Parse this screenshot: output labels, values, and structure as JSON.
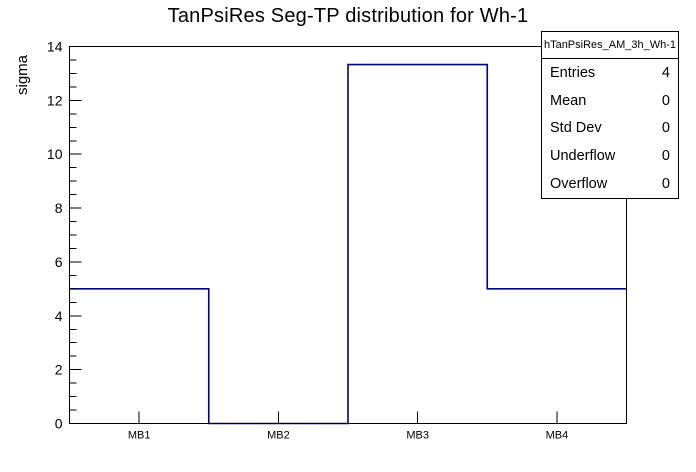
{
  "chart_data": {
    "type": "bar",
    "subtype": "root-step-histogram-outline",
    "title": "TanPsiRes Seg-TP distribution for Wh-1",
    "xlabel": "",
    "ylabel": "sigma",
    "categories": [
      "MB1",
      "MB2",
      "MB3",
      "MB4"
    ],
    "values": [
      5,
      0,
      13.33,
      5
    ],
    "ylim": [
      0,
      14
    ],
    "y_major_step": 2,
    "y_minor_step": 0.5,
    "grid": "off",
    "legend": "none",
    "line_color": "#000099",
    "frame_color": "#000000",
    "background_color": "#ffffff",
    "stats_box": {
      "title": "hTanPsiRes_AM_3h_Wh-1",
      "rows": [
        {
          "label": "Entries",
          "value": "4"
        },
        {
          "label": "Mean",
          "value": "0"
        },
        {
          "label": "Std Dev",
          "value": "0"
        },
        {
          "label": "Underflow",
          "value": "0"
        },
        {
          "label": "Overflow",
          "value": "0"
        }
      ]
    }
  }
}
